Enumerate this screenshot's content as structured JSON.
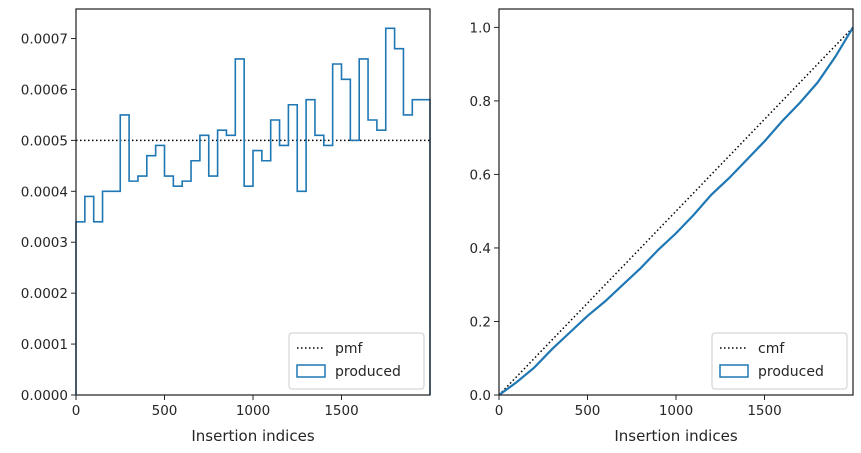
{
  "chart_data": [
    {
      "type": "step",
      "xlabel": "Insertion indices",
      "ylabel": "",
      "xlim": [
        0,
        2000
      ],
      "ylim": [
        0,
        0.000758
      ],
      "xticks": [
        0,
        500,
        1000,
        1500
      ],
      "xtick_labels": [
        "0",
        "500",
        "1000",
        "1500"
      ],
      "yticks": [
        0,
        0.0001,
        0.0002,
        0.0003,
        0.0004,
        0.0005,
        0.0006,
        0.0007
      ],
      "ytick_labels": [
        "0.0000",
        "0.0001",
        "0.0002",
        "0.0003",
        "0.0004",
        "0.0005",
        "0.0006",
        "0.0007"
      ],
      "legend_position": "lower-right",
      "series": [
        {
          "name": "pmf",
          "style": "dotted",
          "color": "#000000",
          "x": [
            0,
            2000
          ],
          "y": [
            0.0005,
            0.0005
          ]
        },
        {
          "name": "produced",
          "style": "step",
          "color": "#1f77b4",
          "bin_edges": [
            0,
            50,
            100,
            150,
            200,
            250,
            300,
            350,
            400,
            450,
            500,
            550,
            600,
            650,
            700,
            750,
            800,
            850,
            900,
            950,
            1000,
            1050,
            1100,
            1150,
            1200,
            1250,
            1300,
            1350,
            1400,
            1450,
            1500,
            1550,
            1600,
            1650,
            1700,
            1750,
            1800,
            1850,
            1900,
            1950,
            2000
          ],
          "values": [
            0.00034,
            0.00039,
            0.00034,
            0.0004,
            0.0004,
            0.00055,
            0.00042,
            0.00043,
            0.00047,
            0.00049,
            0.00043,
            0.00041,
            0.00042,
            0.00046,
            0.00051,
            0.00043,
            0.00052,
            0.00051,
            0.00066,
            0.00041,
            0.00048,
            0.00046,
            0.00054,
            0.00049,
            0.00057,
            0.0004,
            0.00058,
            0.00051,
            0.00049,
            0.00065,
            0.00062,
            0.0005,
            0.00066,
            0.00054,
            0.00052,
            0.00072,
            0.00068,
            0.00055,
            0.00058,
            0.00058
          ]
        }
      ]
    },
    {
      "type": "line",
      "xlabel": "Insertion indices",
      "ylabel": "",
      "xlim": [
        0,
        2000
      ],
      "ylim": [
        0,
        1.05
      ],
      "xticks": [
        0,
        500,
        1000,
        1500
      ],
      "xtick_labels": [
        "0",
        "500",
        "1000",
        "1500"
      ],
      "yticks": [
        0,
        0.2,
        0.4,
        0.6,
        0.8,
        1.0
      ],
      "ytick_labels": [
        "0.0",
        "0.2",
        "0.4",
        "0.6",
        "0.8",
        "1.0"
      ],
      "legend_position": "lower-right",
      "series": [
        {
          "name": "cmf",
          "style": "dotted",
          "color": "#000000",
          "x": [
            0,
            2000
          ],
          "y": [
            0,
            1
          ]
        },
        {
          "name": "produced",
          "style": "line",
          "color": "#1f77b4",
          "x": [
            0,
            100,
            200,
            300,
            400,
            500,
            600,
            700,
            800,
            900,
            1000,
            1100,
            1200,
            1300,
            1400,
            1500,
            1600,
            1700,
            1800,
            1900,
            2000
          ],
          "y": [
            0,
            0.035,
            0.075,
            0.125,
            0.17,
            0.215,
            0.255,
            0.3,
            0.345,
            0.395,
            0.44,
            0.49,
            0.545,
            0.59,
            0.64,
            0.69,
            0.745,
            0.795,
            0.85,
            0.92,
            1.0
          ]
        }
      ]
    }
  ]
}
